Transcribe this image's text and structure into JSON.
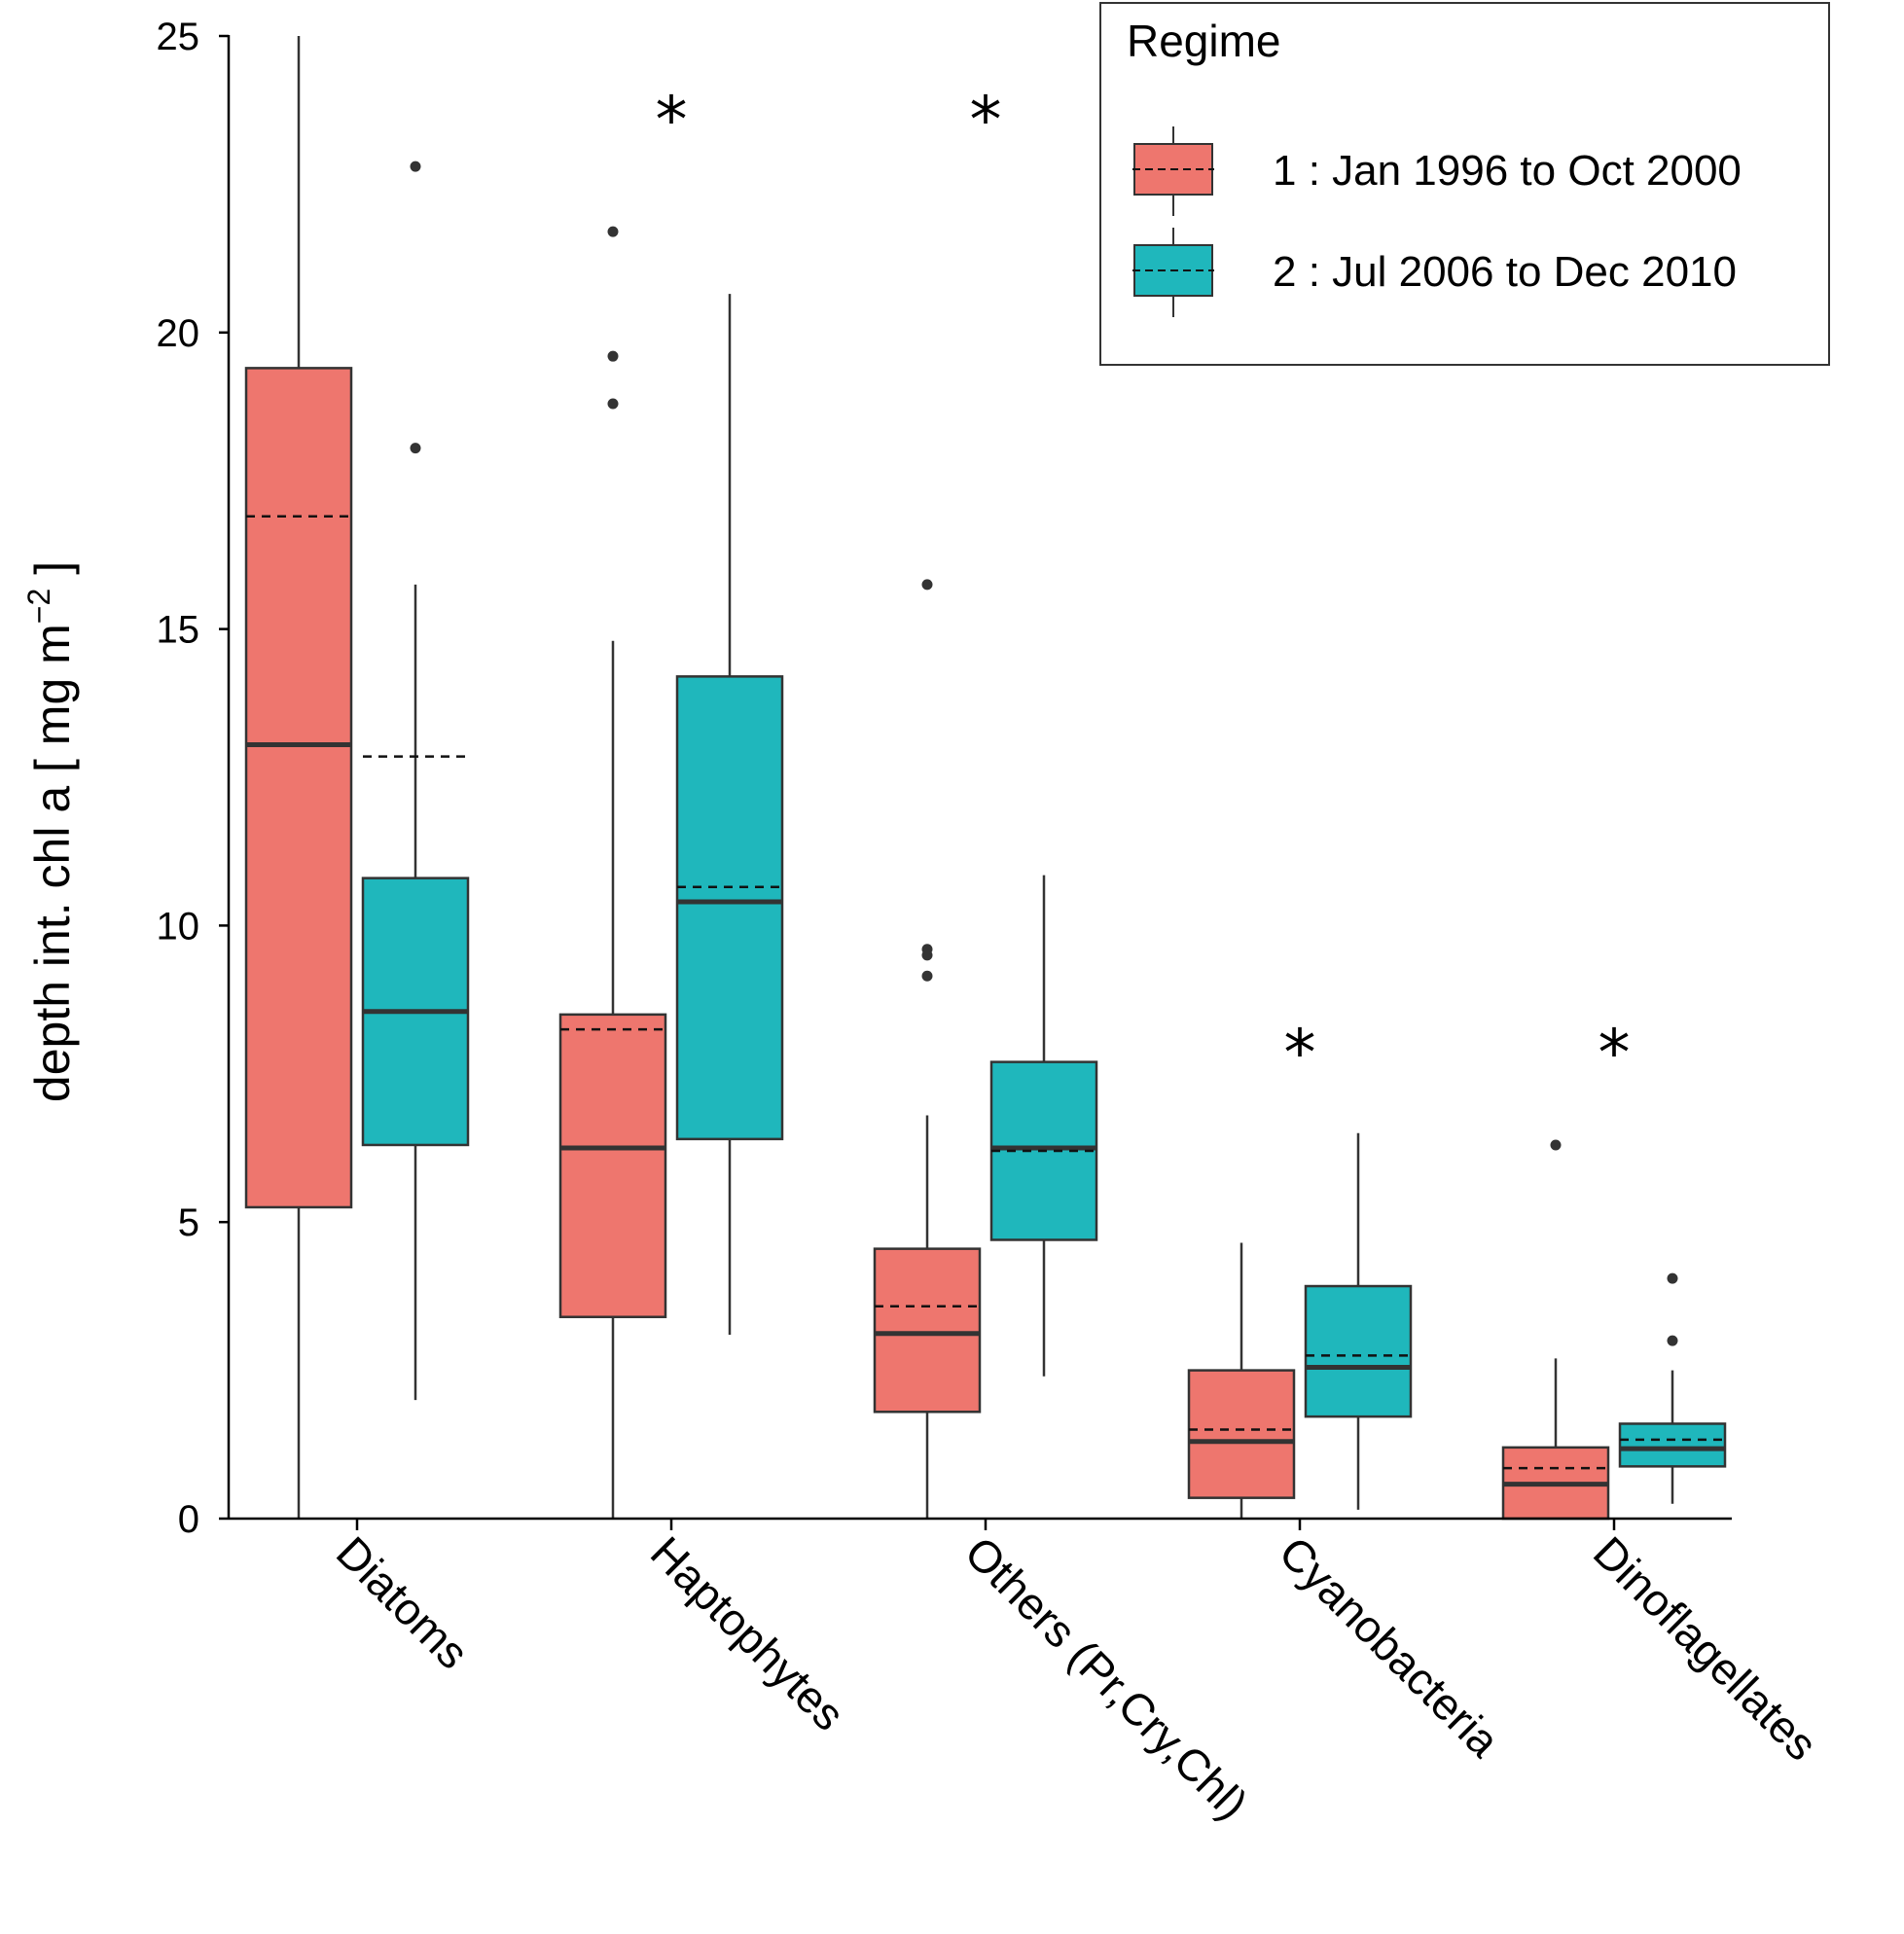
{
  "chart_data": {
    "type": "box",
    "ylabel": "depth int. chl a [ mg m",
    "ylabel_sup": "−2",
    "ylabel_close": " ]",
    "ylim": [
      0,
      25
    ],
    "yticks": [
      0,
      5,
      10,
      15,
      20,
      25
    ],
    "categories": [
      "Diatoms",
      "Haptophytes",
      "Others (Pr,Cry,Chl)",
      "Cyanobacteria",
      "Dinoflagellates"
    ],
    "legend": {
      "title": "Regime",
      "position": "top-right"
    },
    "series": [
      {
        "name": "1 : Jan 1996 to Oct 2000",
        "color": "#EE766E",
        "boxes": [
          {
            "whisker_low": 0,
            "q1": 5.25,
            "median": 13.05,
            "q3": 19.4,
            "whisker_high": 25,
            "mean": 16.9,
            "outliers": []
          },
          {
            "whisker_low": 0,
            "q1": 3.4,
            "median": 6.25,
            "q3": 8.5,
            "whisker_high": 14.8,
            "mean": 8.25,
            "outliers": [
              18.8,
              19.6,
              21.7
            ]
          },
          {
            "whisker_low": 0,
            "q1": 1.8,
            "median": 3.12,
            "q3": 4.55,
            "whisker_high": 6.8,
            "mean": 3.58,
            "outliers": [
              9.15,
              9.5,
              9.6,
              15.75
            ]
          },
          {
            "whisker_low": 0,
            "q1": 0.35,
            "median": 1.3,
            "q3": 2.5,
            "whisker_high": 4.65,
            "mean": 1.5,
            "outliers": []
          },
          {
            "whisker_low": 0,
            "q1": 0,
            "median": 0.58,
            "q3": 1.2,
            "whisker_high": 2.7,
            "mean": 0.85,
            "outliers": [
              6.3
            ]
          }
        ]
      },
      {
        "name": "2 : Jul 2006 to Dec 2010",
        "color": "#1FB7BC",
        "boxes": [
          {
            "whisker_low": 2.0,
            "q1": 6.3,
            "median": 8.55,
            "q3": 10.8,
            "whisker_high": 15.75,
            "mean": 12.85,
            "outliers": [
              18.05,
              22.8
            ]
          },
          {
            "whisker_low": 3.1,
            "q1": 6.4,
            "median": 10.4,
            "q3": 14.2,
            "whisker_high": 20.65,
            "mean": 10.65,
            "outliers": []
          },
          {
            "whisker_low": 2.4,
            "q1": 4.7,
            "median": 6.25,
            "q3": 7.7,
            "whisker_high": 10.85,
            "mean": 6.2,
            "outliers": []
          },
          {
            "whisker_low": 0.15,
            "q1": 1.72,
            "median": 2.55,
            "q3": 3.92,
            "whisker_high": 6.5,
            "mean": 2.75,
            "outliers": []
          },
          {
            "whisker_low": 0.25,
            "q1": 0.88,
            "median": 1.18,
            "q3": 1.6,
            "whisker_high": 2.5,
            "mean": 1.33,
            "outliers": [
              3.0,
              4.05
            ]
          }
        ]
      }
    ],
    "significance": [
      {
        "category": "Haptophytes",
        "label": "*"
      },
      {
        "category": "Others (Pr,Cry,Chl)",
        "label": "*"
      },
      {
        "category": "Cyanobacteria",
        "label": "*"
      },
      {
        "category": "Dinoflagellates",
        "label": "*"
      }
    ]
  }
}
